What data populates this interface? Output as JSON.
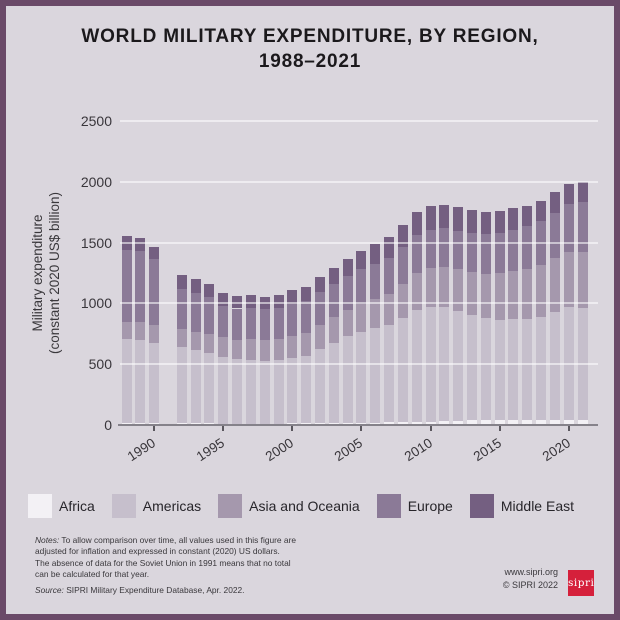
{
  "frame": {
    "border_color": "#6a4a68",
    "background": "#dad6dd"
  },
  "title": {
    "line1": "WORLD MILITARY EXPENDITURE, BY REGION,",
    "line2": "1988–2021"
  },
  "chart_data": {
    "type": "bar",
    "stacked": true,
    "title": "World military expenditure, by region, 1988–2021",
    "ylabel": [
      "Military expenditure",
      "(constant 2020 US$ billion)"
    ],
    "unit": "constant 2020 US$ billion",
    "ylim": [
      0,
      2500
    ],
    "yticks": [
      0,
      500,
      1000,
      1500,
      2000,
      2500
    ],
    "xtick_years": [
      1990,
      1995,
      2000,
      2005,
      2010,
      2015,
      2020
    ],
    "grid": "horizontal",
    "legend_position": "bottom",
    "missing_years": [
      1991
    ],
    "years": [
      1988,
      1989,
      1990,
      1991,
      1992,
      1993,
      1994,
      1995,
      1996,
      1997,
      1998,
      1999,
      2000,
      2001,
      2002,
      2003,
      2004,
      2005,
      2006,
      2007,
      2008,
      2009,
      2010,
      2011,
      2012,
      2013,
      2014,
      2015,
      2016,
      2017,
      2018,
      2019,
      2020,
      2021
    ],
    "series": [
      {
        "name": "Africa",
        "color": "#f3f1f5",
        "values": [
          16,
          16,
          16,
          null,
          14,
          13,
          13,
          12,
          12,
          12,
          12,
          12,
          13,
          13,
          14,
          15,
          16,
          18,
          19,
          21,
          23,
          25,
          28,
          31,
          34,
          38,
          42,
          42,
          41,
          41,
          41,
          41,
          40,
          40
        ]
      },
      {
        "name": "Americas",
        "color": "#c6bfcc",
        "values": [
          690,
          685,
          660,
          null,
          625,
          600,
          578,
          548,
          528,
          525,
          518,
          522,
          538,
          552,
          610,
          662,
          712,
          750,
          775,
          800,
          858,
          920,
          945,
          940,
          905,
          865,
          835,
          825,
          828,
          832,
          850,
          892,
          930,
          925
        ]
      },
      {
        "name": "Asia and Oceania",
        "color": "#a598ad",
        "values": [
          140,
          143,
          146,
          null,
          152,
          155,
          158,
          160,
          163,
          167,
          170,
          175,
          182,
          190,
          200,
          209,
          219,
          230,
          242,
          257,
          277,
          302,
          315,
          327,
          340,
          353,
          367,
          383,
          398,
          412,
          425,
          440,
          452,
          460
        ]
      },
      {
        "name": "Europe",
        "color": "#8b7a97",
        "values": [
          590,
          585,
          545,
          null,
          330,
          320,
          300,
          262,
          255,
          258,
          250,
          255,
          262,
          265,
          268,
          272,
          278,
          283,
          290,
          297,
          305,
          315,
          318,
          318,
          320,
          322,
          325,
          330,
          340,
          348,
          358,
          372,
          392,
          405
        ]
      },
      {
        "name": "Middle East",
        "color": "#745f81",
        "values": [
          120,
          112,
          100,
          null,
          115,
          112,
          108,
          104,
          102,
          106,
          104,
          108,
          112,
          118,
          126,
          132,
          140,
          150,
          160,
          170,
          180,
          190,
          192,
          192,
          190,
          188,
          185,
          183,
          175,
          170,
          168,
          168,
          170,
          172
        ]
      }
    ]
  },
  "legend": {
    "items": [
      {
        "label": "Africa",
        "color": "#f3f1f5"
      },
      {
        "label": "Americas",
        "color": "#c6bfcc"
      },
      {
        "label": "Asia and Oceania",
        "color": "#a598ad"
      },
      {
        "label": "Europe",
        "color": "#8b7a97"
      },
      {
        "label": "Middle East",
        "color": "#745f81"
      }
    ]
  },
  "notes": {
    "notes_label": "Notes:",
    "lines": [
      "To allow comparison over time, all values used in this figure are",
      "adjusted for inflation and expressed in constant (2020) US dollars.",
      "The absence of data for the Soviet Union in 1991 means that no total",
      "can be calculated for that year."
    ],
    "source_label": "Source:",
    "source_text": "SIPRI Military Expenditure Database, Apr. 2022."
  },
  "footer": {
    "website": "www.sipri.org",
    "copyright": "© SIPRI 2022",
    "logo_text": "sipri",
    "logo_color": "#d5203b"
  }
}
